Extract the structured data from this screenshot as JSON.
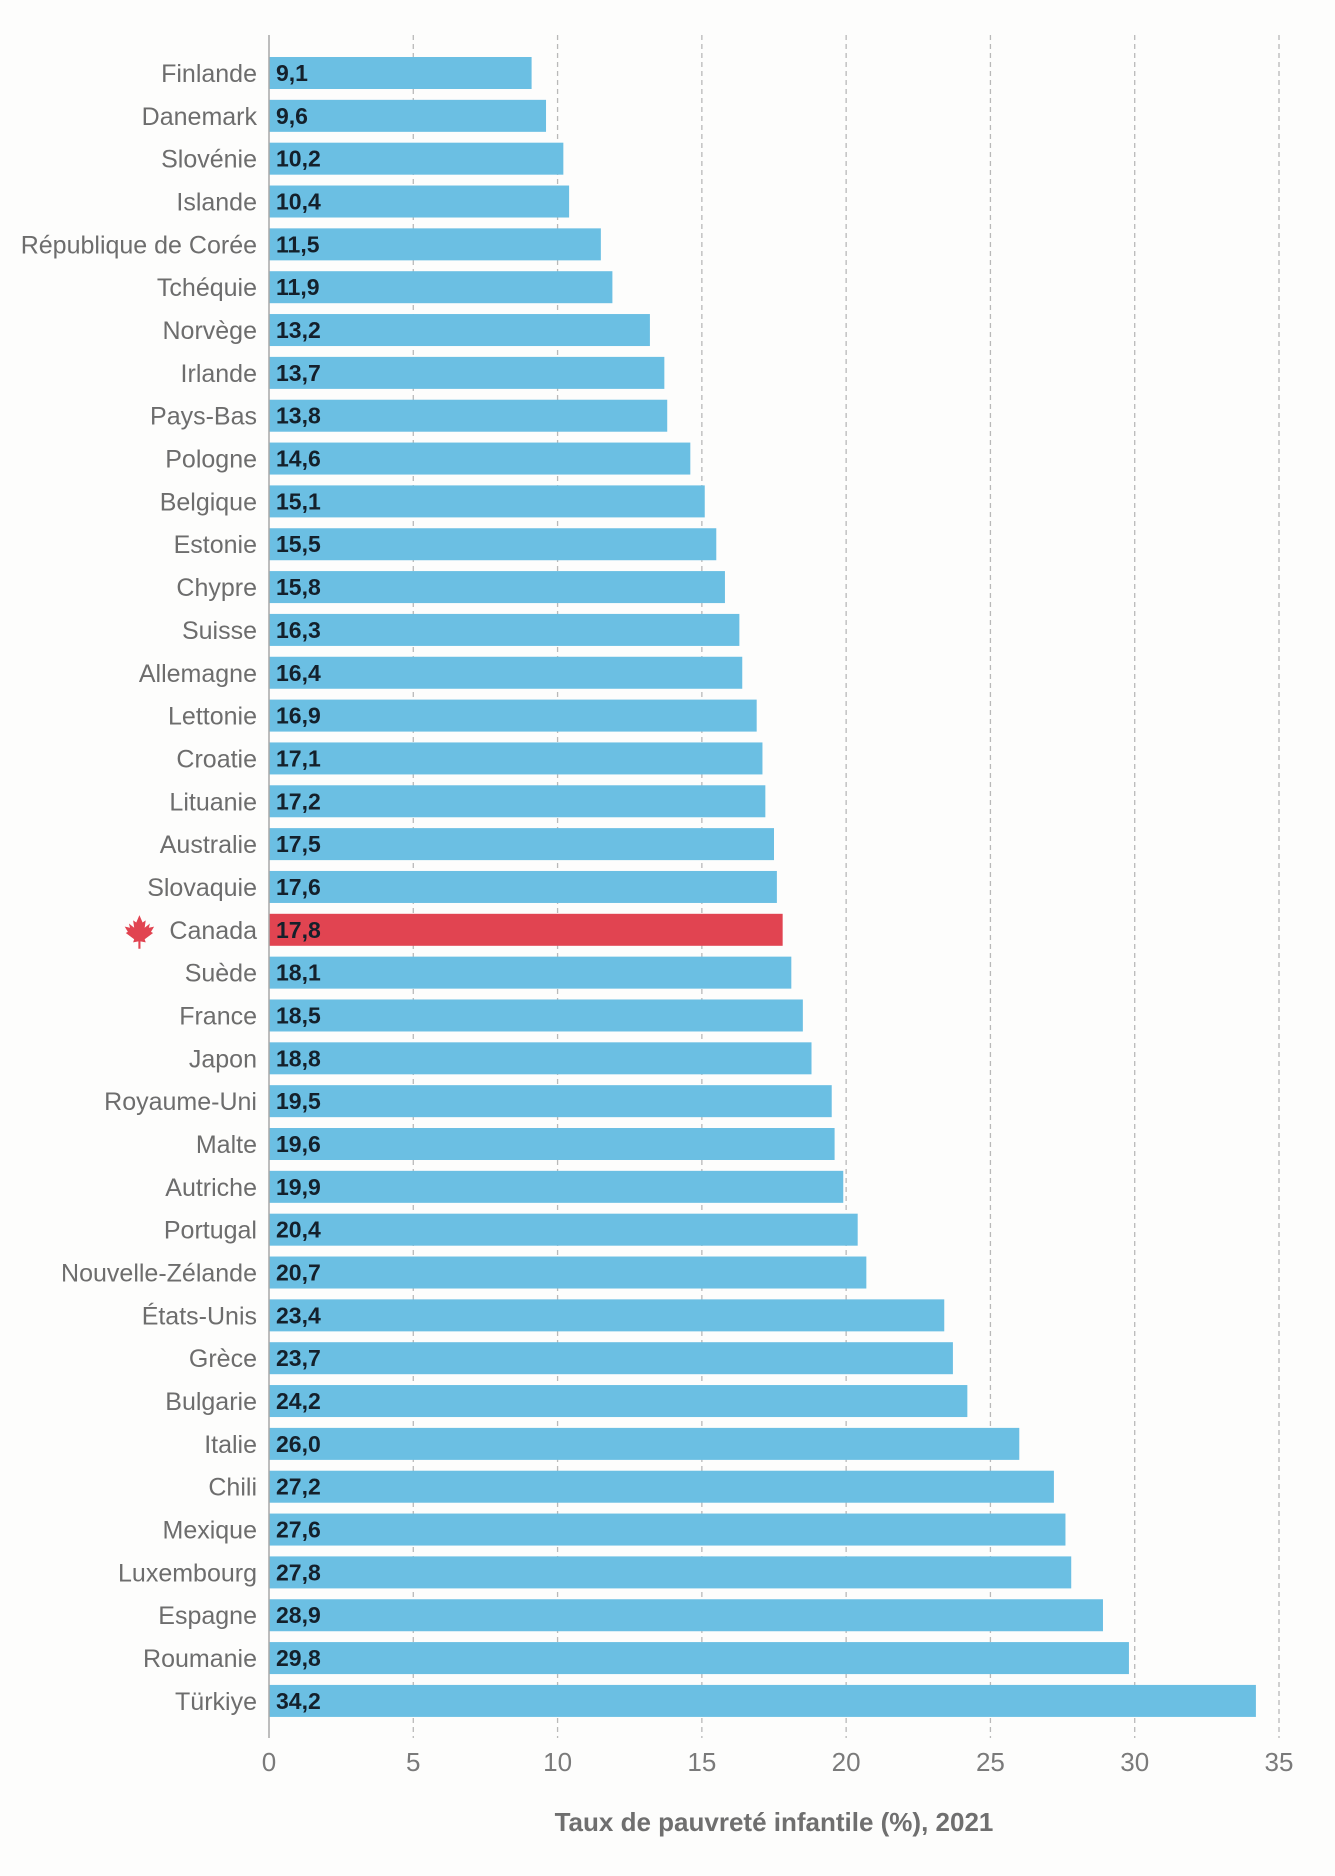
{
  "chart_data": {
    "type": "bar",
    "orientation": "horizontal",
    "title": "",
    "xlabel": "Taux de pauvreté infantile (%), 2021",
    "ylabel": "",
    "xlim": [
      0,
      35
    ],
    "xticks": [
      0,
      5,
      10,
      15,
      20,
      25,
      30,
      35
    ],
    "tick_labels": [
      "0",
      "5",
      "10",
      "15",
      "20",
      "25",
      "30",
      "35"
    ],
    "grid": "vertical-dashed",
    "legend": "none",
    "colors": {
      "default": "#6BBFE3",
      "highlight": "#E14451"
    },
    "highlight_category": "Canada",
    "highlight_icon": "maple-leaf-icon",
    "categories": [
      "Finlande",
      "Danemark",
      "Slovénie",
      "Islande",
      "République de Corée",
      "Tchéquie",
      "Norvège",
      "Irlande",
      "Pays-Bas",
      "Pologne",
      "Belgique",
      "Estonie",
      "Chypre",
      "Suisse",
      "Allemagne",
      "Lettonie",
      "Croatie",
      "Lituanie",
      "Australie",
      "Slovaquie",
      "Canada",
      "Suède",
      "France",
      "Japon",
      "Royaume-Uni",
      "Malte",
      "Autriche",
      "Portugal",
      "Nouvelle-Zélande",
      "États-Unis",
      "Grèce",
      "Bulgarie",
      "Italie",
      "Chili",
      "Mexique",
      "Luxembourg",
      "Espagne",
      "Roumanie",
      "Türkiye"
    ],
    "values": [
      9.1,
      9.6,
      10.2,
      10.4,
      11.5,
      11.9,
      13.2,
      13.7,
      13.8,
      14.6,
      15.1,
      15.5,
      15.8,
      16.3,
      16.4,
      16.9,
      17.1,
      17.2,
      17.5,
      17.6,
      17.8,
      18.1,
      18.5,
      18.8,
      19.5,
      19.6,
      19.9,
      20.4,
      20.7,
      23.4,
      23.7,
      24.2,
      26.0,
      27.2,
      27.6,
      27.8,
      28.9,
      29.8,
      34.2
    ],
    "value_labels": [
      "9,1",
      "9,6",
      "10,2",
      "10,4",
      "11,5",
      "11,9",
      "13,2",
      "13,7",
      "13,8",
      "14,6",
      "15,1",
      "15,5",
      "15,8",
      "16,3",
      "16,4",
      "16,9",
      "17,1",
      "17,2",
      "17,5",
      "17,6",
      "17,8",
      "18,1",
      "18,5",
      "18,8",
      "19,5",
      "19,6",
      "19,9",
      "20,4",
      "20,7",
      "23,4",
      "23,7",
      "24,2",
      "26,0",
      "27,2",
      "27,6",
      "27,8",
      "28,9",
      "29,8",
      "34,2"
    ]
  }
}
